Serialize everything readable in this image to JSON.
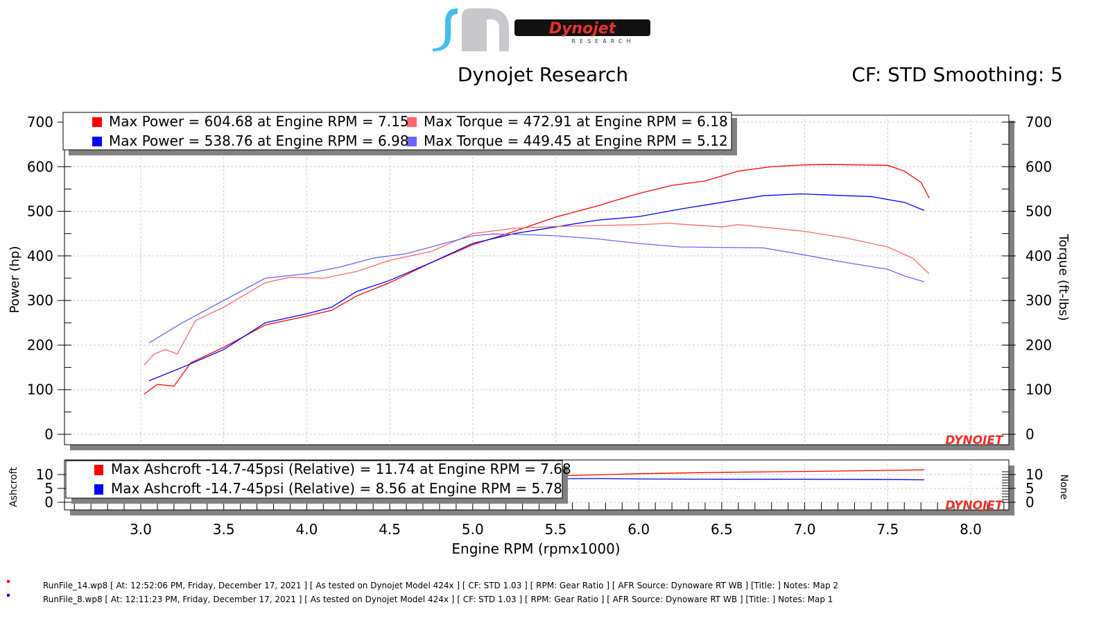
{
  "header": {
    "company": "Dynojet Research",
    "cf_info": "CF: STD Smoothing: 5",
    "logo_text": "Dynojet",
    "logo_sub": "RESEARCH",
    "watermark": "DYNOJET"
  },
  "colors": {
    "run1_power": "#ff0000",
    "run2_power": "#0000ff",
    "run1_torque": "#ff6666",
    "run2_torque": "#6666ff"
  },
  "chart_data": [
    {
      "type": "line",
      "title": "Dynojet Research",
      "xlabel": "Engine RPM (rpmx1000)",
      "ylabel": "Power (hp)",
      "ylabel_right": "Torque (ft-lbs)",
      "xlim": [
        2.6,
        8.25
      ],
      "ylim": [
        0,
        700
      ],
      "x_ticks": [
        "3.0",
        "3.5",
        "4.0",
        "4.5",
        "5.0",
        "5.5",
        "6.0",
        "6.5",
        "7.0",
        "7.5",
        "8.0"
      ],
      "y_ticks": [
        "0",
        "100",
        "200",
        "300",
        "400",
        "500",
        "600",
        "700"
      ],
      "grid": true,
      "legend": [
        "Max Power = 604.68 at Engine RPM = 7.15",
        "Max Torque = 472.91 at Engine RPM = 6.18",
        "Max Power = 538.76 at Engine RPM = 6.98",
        "Max Torque = 449.45 at Engine RPM = 5.12"
      ],
      "series": [
        {
          "name": "Power run 14",
          "x": [
            3.02,
            3.1,
            3.2,
            3.3,
            3.5,
            3.75,
            4.0,
            4.15,
            4.3,
            4.5,
            4.75,
            5.0,
            5.25,
            5.5,
            5.75,
            6.0,
            6.2,
            6.4,
            6.6,
            6.8,
            7.0,
            7.15,
            7.3,
            7.5,
            7.6,
            7.7,
            7.75
          ],
          "y": [
            90,
            112,
            108,
            160,
            195,
            245,
            265,
            278,
            310,
            340,
            385,
            425,
            455,
            487,
            512,
            540,
            558,
            568,
            590,
            600,
            604,
            605,
            604,
            603,
            590,
            565,
            530
          ]
        },
        {
          "name": "Power run 8",
          "x": [
            3.05,
            3.25,
            3.5,
            3.75,
            4.0,
            4.15,
            4.3,
            4.5,
            4.75,
            5.0,
            5.25,
            5.5,
            5.75,
            6.0,
            6.25,
            6.5,
            6.75,
            6.98,
            7.25,
            7.4,
            7.6,
            7.72
          ],
          "y": [
            120,
            150,
            190,
            250,
            270,
            285,
            320,
            345,
            385,
            428,
            450,
            465,
            480,
            488,
            505,
            520,
            535,
            539,
            535,
            533,
            520,
            502
          ]
        },
        {
          "name": "Torque run 14",
          "x": [
            3.02,
            3.08,
            3.15,
            3.22,
            3.33,
            3.5,
            3.75,
            3.9,
            4.1,
            4.3,
            4.5,
            4.75,
            5.0,
            5.25,
            5.5,
            6.0,
            6.18,
            6.5,
            6.6,
            7.0,
            7.25,
            7.5,
            7.65,
            7.75
          ],
          "y": [
            155,
            180,
            190,
            180,
            255,
            285,
            340,
            352,
            350,
            365,
            390,
            410,
            450,
            462,
            466,
            470,
            473,
            465,
            470,
            455,
            440,
            420,
            395,
            360
          ]
        },
        {
          "name": "Torque run 8",
          "x": [
            3.05,
            3.25,
            3.5,
            3.75,
            4.0,
            4.2,
            4.4,
            4.6,
            4.8,
            5.0,
            5.12,
            5.3,
            5.5,
            5.75,
            6.0,
            6.25,
            6.75,
            7.0,
            7.25,
            7.5,
            7.6,
            7.72
          ],
          "y": [
            205,
            250,
            300,
            350,
            360,
            375,
            395,
            405,
            425,
            445,
            449,
            448,
            445,
            438,
            428,
            420,
            418,
            402,
            385,
            370,
            355,
            342
          ]
        }
      ]
    },
    {
      "type": "line",
      "ylabel": "Ashcroft",
      "ylabel_right": "None",
      "ylim": [
        0,
        12
      ],
      "y_ticks": [
        "0",
        "5",
        "10"
      ],
      "legend": [
        "Max Ashcroft -14.7-45psi (Relative) = 11.74 at Engine RPM = 7.68",
        "Max Ashcroft -14.7-45psi (Relative) = 8.56 at Engine RPM = 5.78"
      ],
      "series": [
        {
          "name": "Ashcroft run 14",
          "x": [
            3.1,
            3.2,
            5.5,
            6.0,
            6.5,
            7.0,
            7.5,
            7.72
          ],
          "y": [
            0.5,
            1.5,
            9.5,
            10.3,
            10.8,
            11.1,
            11.5,
            11.7
          ]
        },
        {
          "name": "Ashcroft run 8",
          "x": [
            3.1,
            3.2,
            5.5,
            5.78,
            6.0,
            6.5,
            7.0,
            7.5,
            7.72
          ],
          "y": [
            0.8,
            1.8,
            8.5,
            8.56,
            8.4,
            8.3,
            8.3,
            8.2,
            8.1
          ]
        }
      ]
    }
  ],
  "footer": [
    "RunFile_14.wp8 [ At: 12:52:06 PM, Friday, December 17, 2021 ] [ As tested on Dynojet Model 424x ] [ CF: STD 1.03 ] [ RPM: Gear Ratio ] [ AFR Source: Dynoware RT WB ] [Title: ]  Notes: Map 2",
    "RunFile_8.wp8 [ At: 12:11:23 PM, Friday, December 17, 2021 ] [ As tested on Dynojet Model 424x ] [ CF: STD 1.03 ] [ RPM: Gear Ratio ] [ AFR Source: Dynoware RT WB ] [Title: ]  Notes: Map 1"
  ]
}
